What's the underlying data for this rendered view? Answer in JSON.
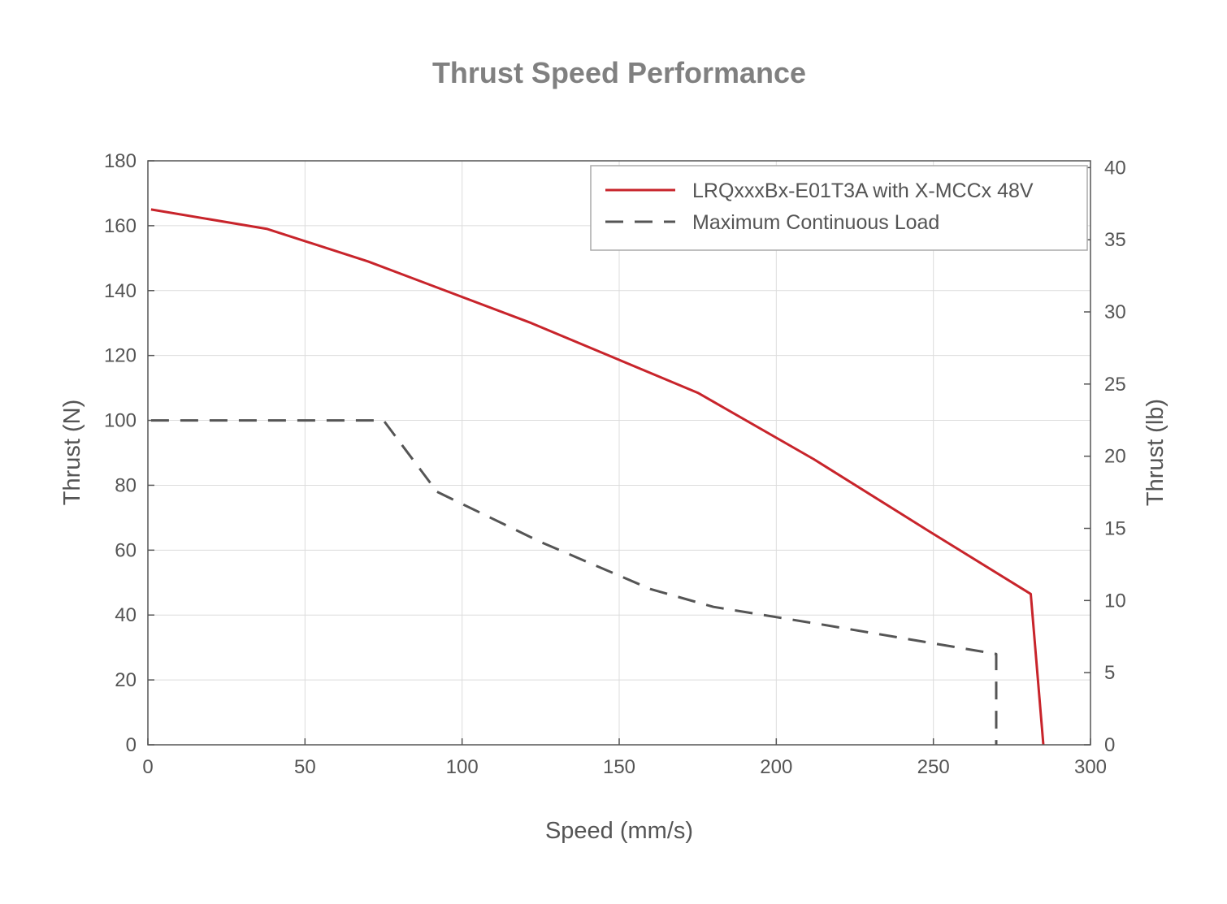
{
  "chart_data": {
    "type": "line",
    "title": "Thrust Speed Performance",
    "xlabel": "Speed (mm/s)",
    "ylabel": "Thrust (N)",
    "ylabel_right": "Thrust (lb)",
    "xlim": [
      0,
      300
    ],
    "ylim": [
      0,
      180
    ],
    "ylim_right": [
      0,
      40.47
    ],
    "x_ticks": [
      0,
      50,
      100,
      150,
      200,
      250,
      300
    ],
    "y_ticks": [
      0,
      20,
      40,
      60,
      80,
      100,
      120,
      140,
      160,
      180
    ],
    "y_ticks_right": [
      0,
      5,
      10,
      15,
      20,
      25,
      30,
      35,
      40
    ],
    "grid": true,
    "legend_position": "top-right",
    "series": [
      {
        "name": "LRQxxxBx-E01T3A with X-MCCx 48V",
        "color": "#c8242b",
        "style": "solid",
        "x": [
          1,
          38,
          70,
          122,
          175,
          212,
          250,
          281,
          285
        ],
        "y": [
          165,
          159,
          149,
          130,
          108.5,
          88,
          65,
          46.5,
          0
        ]
      },
      {
        "name": "Maximum Continuous Load",
        "color": "#555555",
        "style": "dashed",
        "x": [
          1,
          75,
          92,
          125,
          160,
          180,
          215,
          270,
          270
        ],
        "y": [
          100,
          100,
          78,
          62.5,
          48,
          42.5,
          37,
          28,
          0
        ]
      }
    ]
  }
}
